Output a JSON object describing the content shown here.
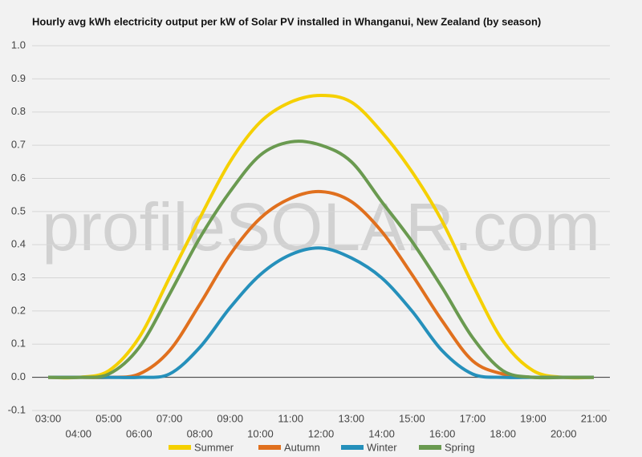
{
  "chart_data": {
    "type": "line",
    "title": "Hourly avg kWh electricity output per kW of Solar PV installed in Whanganui, New Zealand (by season)",
    "watermark": "profileSOLAR.com",
    "categories": [
      "03:00",
      "04:00",
      "05:00",
      "06:00",
      "07:00",
      "08:00",
      "09:00",
      "10:00",
      "11:00",
      "12:00",
      "13:00",
      "14:00",
      "15:00",
      "16:00",
      "17:00",
      "18:00",
      "19:00",
      "20:00",
      "21:00"
    ],
    "series": [
      {
        "name": "Summer",
        "color": "#f5d000",
        "values": [
          0,
          0,
          0.02,
          0.12,
          0.3,
          0.48,
          0.65,
          0.77,
          0.83,
          0.85,
          0.83,
          0.74,
          0.62,
          0.47,
          0.28,
          0.11,
          0.02,
          0,
          0
        ]
      },
      {
        "name": "Autumn",
        "color": "#e0701e",
        "values": [
          0,
          0,
          0,
          0.01,
          0.08,
          0.22,
          0.37,
          0.48,
          0.54,
          0.56,
          0.53,
          0.44,
          0.31,
          0.17,
          0.05,
          0.01,
          0,
          0,
          0
        ]
      },
      {
        "name": "Winter",
        "color": "#2590bb",
        "values": [
          0,
          0,
          0,
          0,
          0.01,
          0.09,
          0.21,
          0.31,
          0.37,
          0.39,
          0.36,
          0.3,
          0.2,
          0.08,
          0.01,
          0,
          0,
          0,
          0
        ]
      },
      {
        "name": "Spring",
        "color": "#6a9a50",
        "values": [
          0,
          0,
          0.01,
          0.09,
          0.25,
          0.42,
          0.56,
          0.67,
          0.71,
          0.7,
          0.65,
          0.53,
          0.41,
          0.27,
          0.12,
          0.02,
          0,
          0,
          0
        ]
      }
    ],
    "ylim": [
      -0.1,
      1.0
    ],
    "yticks": [
      -0.1,
      {
        "value": 0,
        "label": "0.0"
      },
      0.1,
      0.2,
      0.3,
      0.4,
      0.5,
      0.6,
      0.7,
      0.8,
      0.9,
      {
        "value": 1,
        "label": "1.0"
      }
    ],
    "grid": true,
    "legend": "bottom"
  }
}
